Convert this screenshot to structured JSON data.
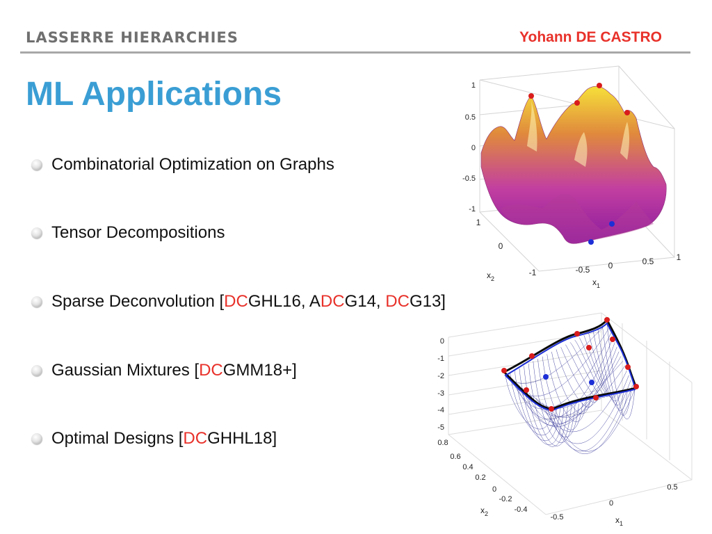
{
  "header": {
    "section": "LASSERRE HIERARCHIES",
    "author": "Yohann DE CASTRO"
  },
  "title": "ML Applications",
  "bullets": [
    {
      "parts": [
        {
          "text": "Combinatorial Optimization on Graphs"
        }
      ]
    },
    {
      "parts": [
        {
          "text": "Tensor Decompositions"
        }
      ]
    },
    {
      "parts": [
        {
          "text": "Sparse Deconvolution ["
        },
        {
          "text": "DC",
          "red": true
        },
        {
          "text": "GHL16, A"
        },
        {
          "text": "DC",
          "red": true
        },
        {
          "text": "G14, "
        },
        {
          "text": "DC",
          "red": true
        },
        {
          "text": "G13]"
        }
      ]
    },
    {
      "parts": [
        {
          "text": "Gaussian Mixtures ["
        },
        {
          "text": "DC",
          "red": true
        },
        {
          "text": "GMM18+]"
        }
      ]
    },
    {
      "parts": [
        {
          "text": "Optimal Designs ["
        },
        {
          "text": "DC",
          "red": true
        },
        {
          "text": "GHHL18]"
        }
      ]
    }
  ],
  "plot_top": {
    "z_ticks": [
      "1",
      "0.5",
      "0",
      "-0.5",
      "-1"
    ],
    "x2_ticks": [
      "1",
      "0",
      "-1"
    ],
    "x1_ticks": [
      "-0.5",
      "0",
      "0.5",
      "1"
    ],
    "x1_label": "x",
    "x1_sub": "1",
    "x2_label": "x",
    "x2_sub": "2",
    "surface_colors": [
      "#f6e03a",
      "#e08a3c",
      "#c23fa0",
      "#8a1b9e"
    ]
  },
  "plot_bottom": {
    "z_ticks": [
      "0",
      "-1",
      "-2",
      "-3",
      "-4",
      "-5"
    ],
    "x2_ticks": [
      "0.8",
      "0.6",
      "0.4",
      "0.2",
      "0",
      "-0.2",
      "-0.4"
    ],
    "x1_ticks": [
      "-0.5",
      "0",
      "0.5"
    ],
    "x1_label": "x",
    "x1_sub": "1",
    "x2_label": "x",
    "x2_sub": "2",
    "mesh_color": "#1a1a8c"
  },
  "colors": {
    "title": "#3a9ed4",
    "accent_red": "#e8312a",
    "marker_red": "#d91c1c",
    "marker_blue": "#1d2fd6"
  }
}
